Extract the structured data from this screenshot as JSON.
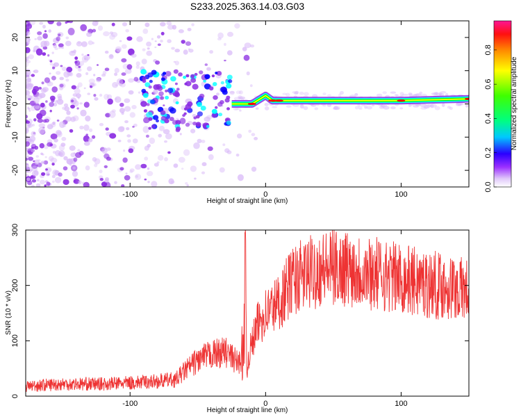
{
  "title": "S233.2025.363.14.03.G03",
  "chart_data": [
    {
      "type": "heatmap",
      "xlabel": "Height of straight line (km)",
      "ylabel": "Frequency (Hz)",
      "xlim": [
        -177,
        150
      ],
      "ylim": [
        -25,
        25
      ],
      "xticks": [
        -100,
        0,
        100
      ],
      "yticks": [
        20,
        10,
        0,
        -10,
        -20
      ],
      "colorbar": {
        "label": "Normalized spectral amplitude",
        "range": [
          0,
          0.97
        ],
        "ticks": [
          "0.0",
          "0.2",
          "0.4",
          "0.6",
          "0.8"
        ],
        "colors": [
          "#ffffff",
          "#d8b8f8",
          "#8a2be2",
          "#0000ff",
          "#00ffff",
          "#00ff00",
          "#ffff00",
          "#ff8c00",
          "#ff0000",
          "#ff1493"
        ]
      },
      "ridge": {
        "description_values": "dominant frequency line near 0 Hz for heights > -25 km",
        "x": [
          -25,
          -10,
          0,
          5,
          10,
          20,
          50,
          100,
          150
        ],
        "freq": [
          0,
          0,
          2.5,
          1,
          1,
          1,
          1,
          1,
          1.5
        ],
        "amplitude": [
          0.55,
          0.9,
          0.75,
          0.85,
          0.9,
          0.7,
          0.65,
          0.85,
          0.9
        ]
      }
    },
    {
      "type": "line",
      "xlabel": "Height of straight line (km)",
      "ylabel": "SNR (10 * v/v)",
      "xlim": [
        -177,
        150
      ],
      "ylim": [
        0,
        300
      ],
      "xticks": [
        -100,
        0,
        100
      ],
      "yticks": [
        0,
        100,
        200,
        300
      ],
      "series": [
        {
          "name": "SNR",
          "color": "#ee3333",
          "x": [
            -177,
            -150,
            -120,
            -100,
            -80,
            -66,
            -60,
            -50,
            -40,
            -30,
            -20,
            -16,
            -15,
            -14,
            -10,
            -5,
            0,
            10,
            20,
            40,
            60,
            80,
            100,
            120,
            140,
            150
          ],
          "y": [
            18,
            22,
            22,
            24,
            27,
            30,
            45,
            65,
            75,
            80,
            60,
            80,
            260,
            60,
            95,
            135,
            150,
            170,
            210,
            230,
            232,
            222,
            212,
            203,
            195,
            190
          ]
        }
      ]
    }
  ]
}
